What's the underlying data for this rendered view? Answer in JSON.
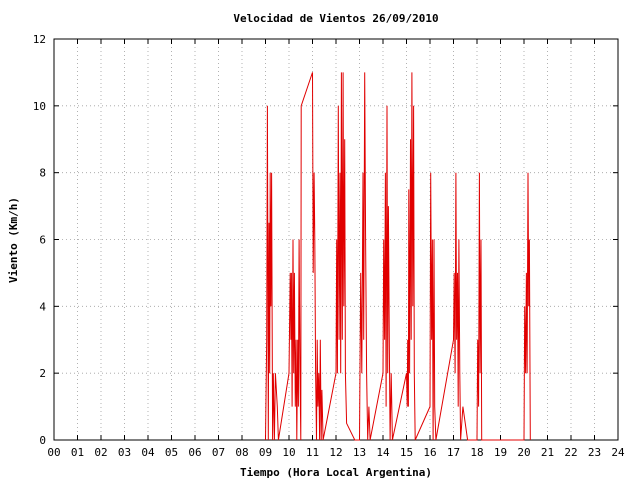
{
  "chart_data": {
    "type": "line",
    "title": "Velocidad de Vientos 26/09/2010",
    "xlabel": "Tiempo (Hora Local Argentina)",
    "ylabel": "Viento (Km/h)",
    "xlim": [
      0,
      24
    ],
    "ylim": [
      0,
      12
    ],
    "x_ticks": [
      "00",
      "01",
      "02",
      "03",
      "04",
      "05",
      "06",
      "07",
      "08",
      "09",
      "10",
      "11",
      "12",
      "13",
      "14",
      "15",
      "16",
      "17",
      "18",
      "19",
      "20",
      "21",
      "22",
      "23",
      "24"
    ],
    "y_ticks": [
      "0",
      "2",
      "4",
      "6",
      "8",
      "10",
      "12"
    ],
    "grid": true,
    "line_color": "#e00000",
    "series": [
      {
        "points": [
          [
            9.0,
            0
          ],
          [
            9.05,
            3
          ],
          [
            9.08,
            10
          ],
          [
            9.1,
            5
          ],
          [
            9.12,
            0
          ],
          [
            9.15,
            6.5
          ],
          [
            9.18,
            2
          ],
          [
            9.2,
            8
          ],
          [
            9.23,
            4
          ],
          [
            9.26,
            8
          ],
          [
            9.3,
            0
          ],
          [
            9.33,
            2
          ],
          [
            9.38,
            0
          ],
          [
            9.42,
            2
          ],
          [
            9.5,
            1
          ],
          [
            9.55,
            0
          ],
          [
            10.0,
            2
          ],
          [
            10.05,
            5
          ],
          [
            10.08,
            3
          ],
          [
            10.1,
            5
          ],
          [
            10.13,
            1
          ],
          [
            10.17,
            6
          ],
          [
            10.2,
            2
          ],
          [
            10.23,
            5
          ],
          [
            10.27,
            1
          ],
          [
            10.3,
            3
          ],
          [
            10.33,
            0
          ],
          [
            10.37,
            3
          ],
          [
            10.4,
            1
          ],
          [
            10.43,
            6
          ],
          [
            10.47,
            2
          ],
          [
            10.5,
            0
          ],
          [
            10.52,
            10
          ],
          [
            11.0,
            11
          ],
          [
            11.03,
            5
          ],
          [
            11.07,
            8
          ],
          [
            11.1,
            6
          ],
          [
            11.13,
            2
          ],
          [
            11.17,
            0
          ],
          [
            11.2,
            3
          ],
          [
            11.23,
            1
          ],
          [
            11.27,
            2
          ],
          [
            11.3,
            0
          ],
          [
            11.33,
            3
          ],
          [
            11.37,
            0
          ],
          [
            11.4,
            1.5
          ],
          [
            11.45,
            0
          ],
          [
            12.0,
            2
          ],
          [
            12.03,
            6
          ],
          [
            12.06,
            2
          ],
          [
            12.1,
            10
          ],
          [
            12.13,
            3
          ],
          [
            12.17,
            8
          ],
          [
            12.2,
            2
          ],
          [
            12.23,
            11
          ],
          [
            12.27,
            3
          ],
          [
            12.3,
            11
          ],
          [
            12.33,
            4
          ],
          [
            12.37,
            9
          ],
          [
            12.4,
            2
          ],
          [
            12.45,
            0.5
          ],
          [
            12.8,
            0
          ],
          [
            13.0,
            0
          ],
          [
            13.05,
            5
          ],
          [
            13.1,
            2
          ],
          [
            13.15,
            8
          ],
          [
            13.18,
            3
          ],
          [
            13.22,
            11
          ],
          [
            13.26,
            6
          ],
          [
            13.3,
            2
          ],
          [
            13.35,
            0
          ],
          [
            13.4,
            1
          ],
          [
            13.45,
            0
          ],
          [
            14.0,
            2
          ],
          [
            14.03,
            6
          ],
          [
            14.07,
            3
          ],
          [
            14.1,
            8
          ],
          [
            14.13,
            1
          ],
          [
            14.17,
            10
          ],
          [
            14.2,
            2
          ],
          [
            14.23,
            7
          ],
          [
            14.27,
            3
          ],
          [
            14.3,
            0
          ],
          [
            14.35,
            2
          ],
          [
            14.4,
            0
          ],
          [
            15.0,
            2
          ],
          [
            15.03,
            1
          ],
          [
            15.05,
            3
          ],
          [
            15.08,
            1
          ],
          [
            15.1,
            7.5
          ],
          [
            15.13,
            2
          ],
          [
            15.17,
            9
          ],
          [
            15.2,
            3
          ],
          [
            15.23,
            11
          ],
          [
            15.27,
            4
          ],
          [
            15.3,
            10
          ],
          [
            15.33,
            2
          ],
          [
            15.37,
            0
          ],
          [
            16.0,
            1
          ],
          [
            16.03,
            8
          ],
          [
            16.07,
            3
          ],
          [
            16.1,
            6
          ],
          [
            16.13,
            0
          ],
          [
            16.17,
            6
          ],
          [
            16.2,
            1
          ],
          [
            16.25,
            0
          ],
          [
            17.0,
            3
          ],
          [
            17.03,
            5
          ],
          [
            17.07,
            2
          ],
          [
            17.1,
            8
          ],
          [
            17.13,
            3
          ],
          [
            17.17,
            5
          ],
          [
            17.2,
            1
          ],
          [
            17.23,
            6
          ],
          [
            17.27,
            2
          ],
          [
            17.3,
            0
          ],
          [
            17.4,
            1
          ],
          [
            17.6,
            0
          ],
          [
            18.0,
            0
          ],
          [
            18.03,
            3
          ],
          [
            18.07,
            1
          ],
          [
            18.1,
            8
          ],
          [
            18.13,
            2
          ],
          [
            18.17,
            6
          ],
          [
            18.2,
            0
          ],
          [
            20.0,
            0
          ],
          [
            20.03,
            4
          ],
          [
            20.07,
            2
          ],
          [
            20.1,
            5
          ],
          [
            20.13,
            2
          ],
          [
            20.17,
            8
          ],
          [
            20.2,
            4
          ],
          [
            20.23,
            6
          ],
          [
            20.27,
            0
          ]
        ]
      }
    ]
  }
}
